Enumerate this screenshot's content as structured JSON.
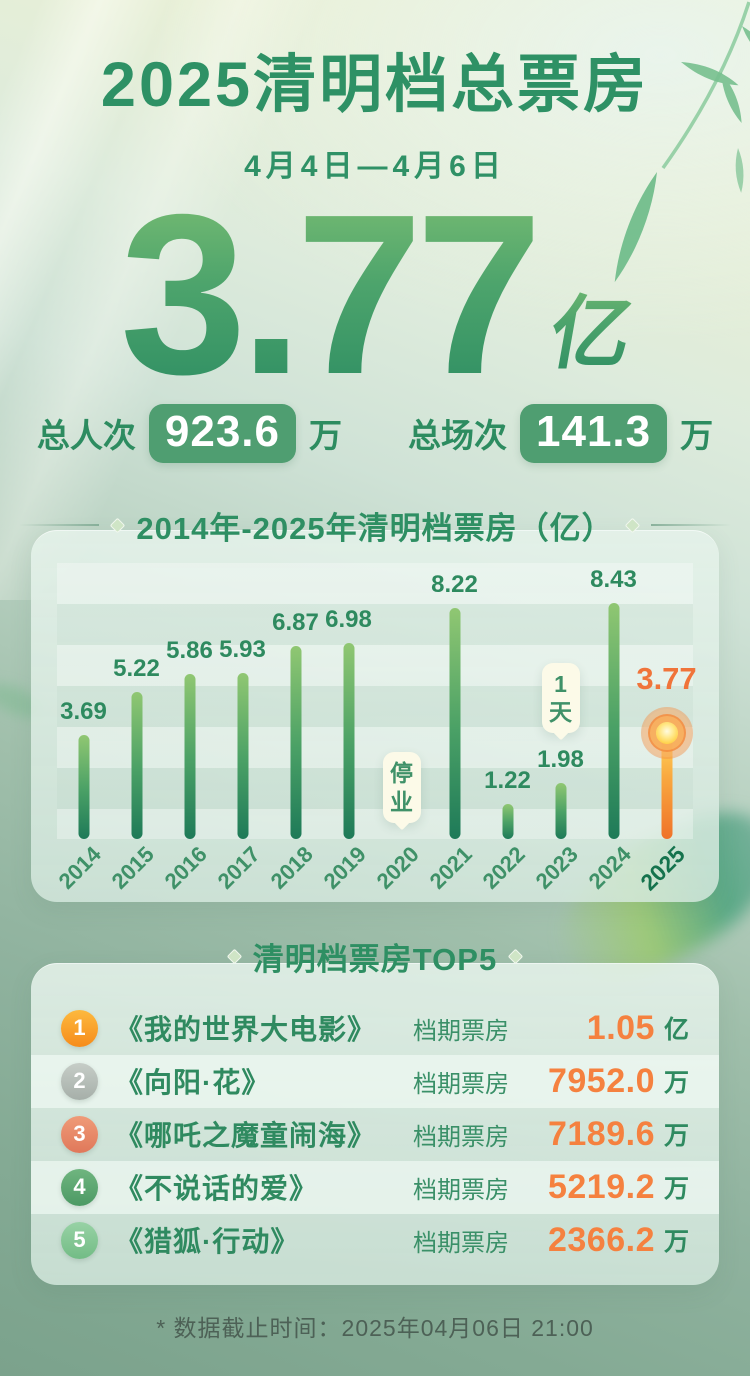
{
  "page": {
    "title": "2025清明档总票房",
    "date_range": "4月4日—4月6日",
    "total_value": "3.77",
    "total_unit": "亿",
    "footer_note": "* 数据截止时间：2025年04月06日 21:00"
  },
  "stats": [
    {
      "label": "总人次",
      "value": "923.6",
      "unit": "万"
    },
    {
      "label": "总场次",
      "value": "141.3",
      "unit": "万"
    }
  ],
  "chart_data": {
    "type": "bar",
    "title": "2014年-2025年清明档票房（亿）",
    "categories": [
      "2014",
      "2015",
      "2016",
      "2017",
      "2018",
      "2019",
      "2020",
      "2021",
      "2022",
      "2023",
      "2024",
      "2025"
    ],
    "values": [
      3.69,
      5.22,
      5.86,
      5.93,
      6.87,
      6.98,
      null,
      8.22,
      1.22,
      1.98,
      8.43,
      3.77
    ],
    "value_labels": [
      "3.69",
      "5.22",
      "5.86",
      "5.93",
      "6.87",
      "6.98",
      "",
      "8.22",
      "1.22",
      "1.98",
      "8.43",
      "3.77"
    ],
    "annotations": [
      {
        "category": "2020",
        "label": "停业"
      },
      {
        "category": "2023",
        "label": "1天"
      }
    ],
    "highlight_category": "2025",
    "ylim": [
      0,
      9
    ],
    "xlabel": "",
    "ylabel": "",
    "grid": "horizontal-bands",
    "legend": false,
    "colors": {
      "bar_top": "#90c772",
      "bar_bottom": "#1e7a58",
      "highlight_top": "#ffd95e",
      "highlight_bottom": "#ef7229",
      "value_label": "#2e8a5f",
      "highlight_label": "#f0743a"
    }
  },
  "top5": {
    "title": "清明档票房TOP5",
    "rows": [
      {
        "rank": "1",
        "title": "《我的世界大电影》",
        "label": "档期票房",
        "value": "1.05",
        "unit": "亿"
      },
      {
        "rank": "2",
        "title": "《向阳·花》",
        "label": "档期票房",
        "value": "7952.0",
        "unit": "万"
      },
      {
        "rank": "3",
        "title": "《哪吒之魔童闹海》",
        "label": "档期票房",
        "value": "7189.6",
        "unit": "万"
      },
      {
        "rank": "4",
        "title": "《不说话的爱》",
        "label": "档期票房",
        "value": "5219.2",
        "unit": "万"
      },
      {
        "rank": "5",
        "title": "《猎狐·行动》",
        "label": "档期票房",
        "value": "2366.2",
        "unit": "万"
      }
    ]
  }
}
